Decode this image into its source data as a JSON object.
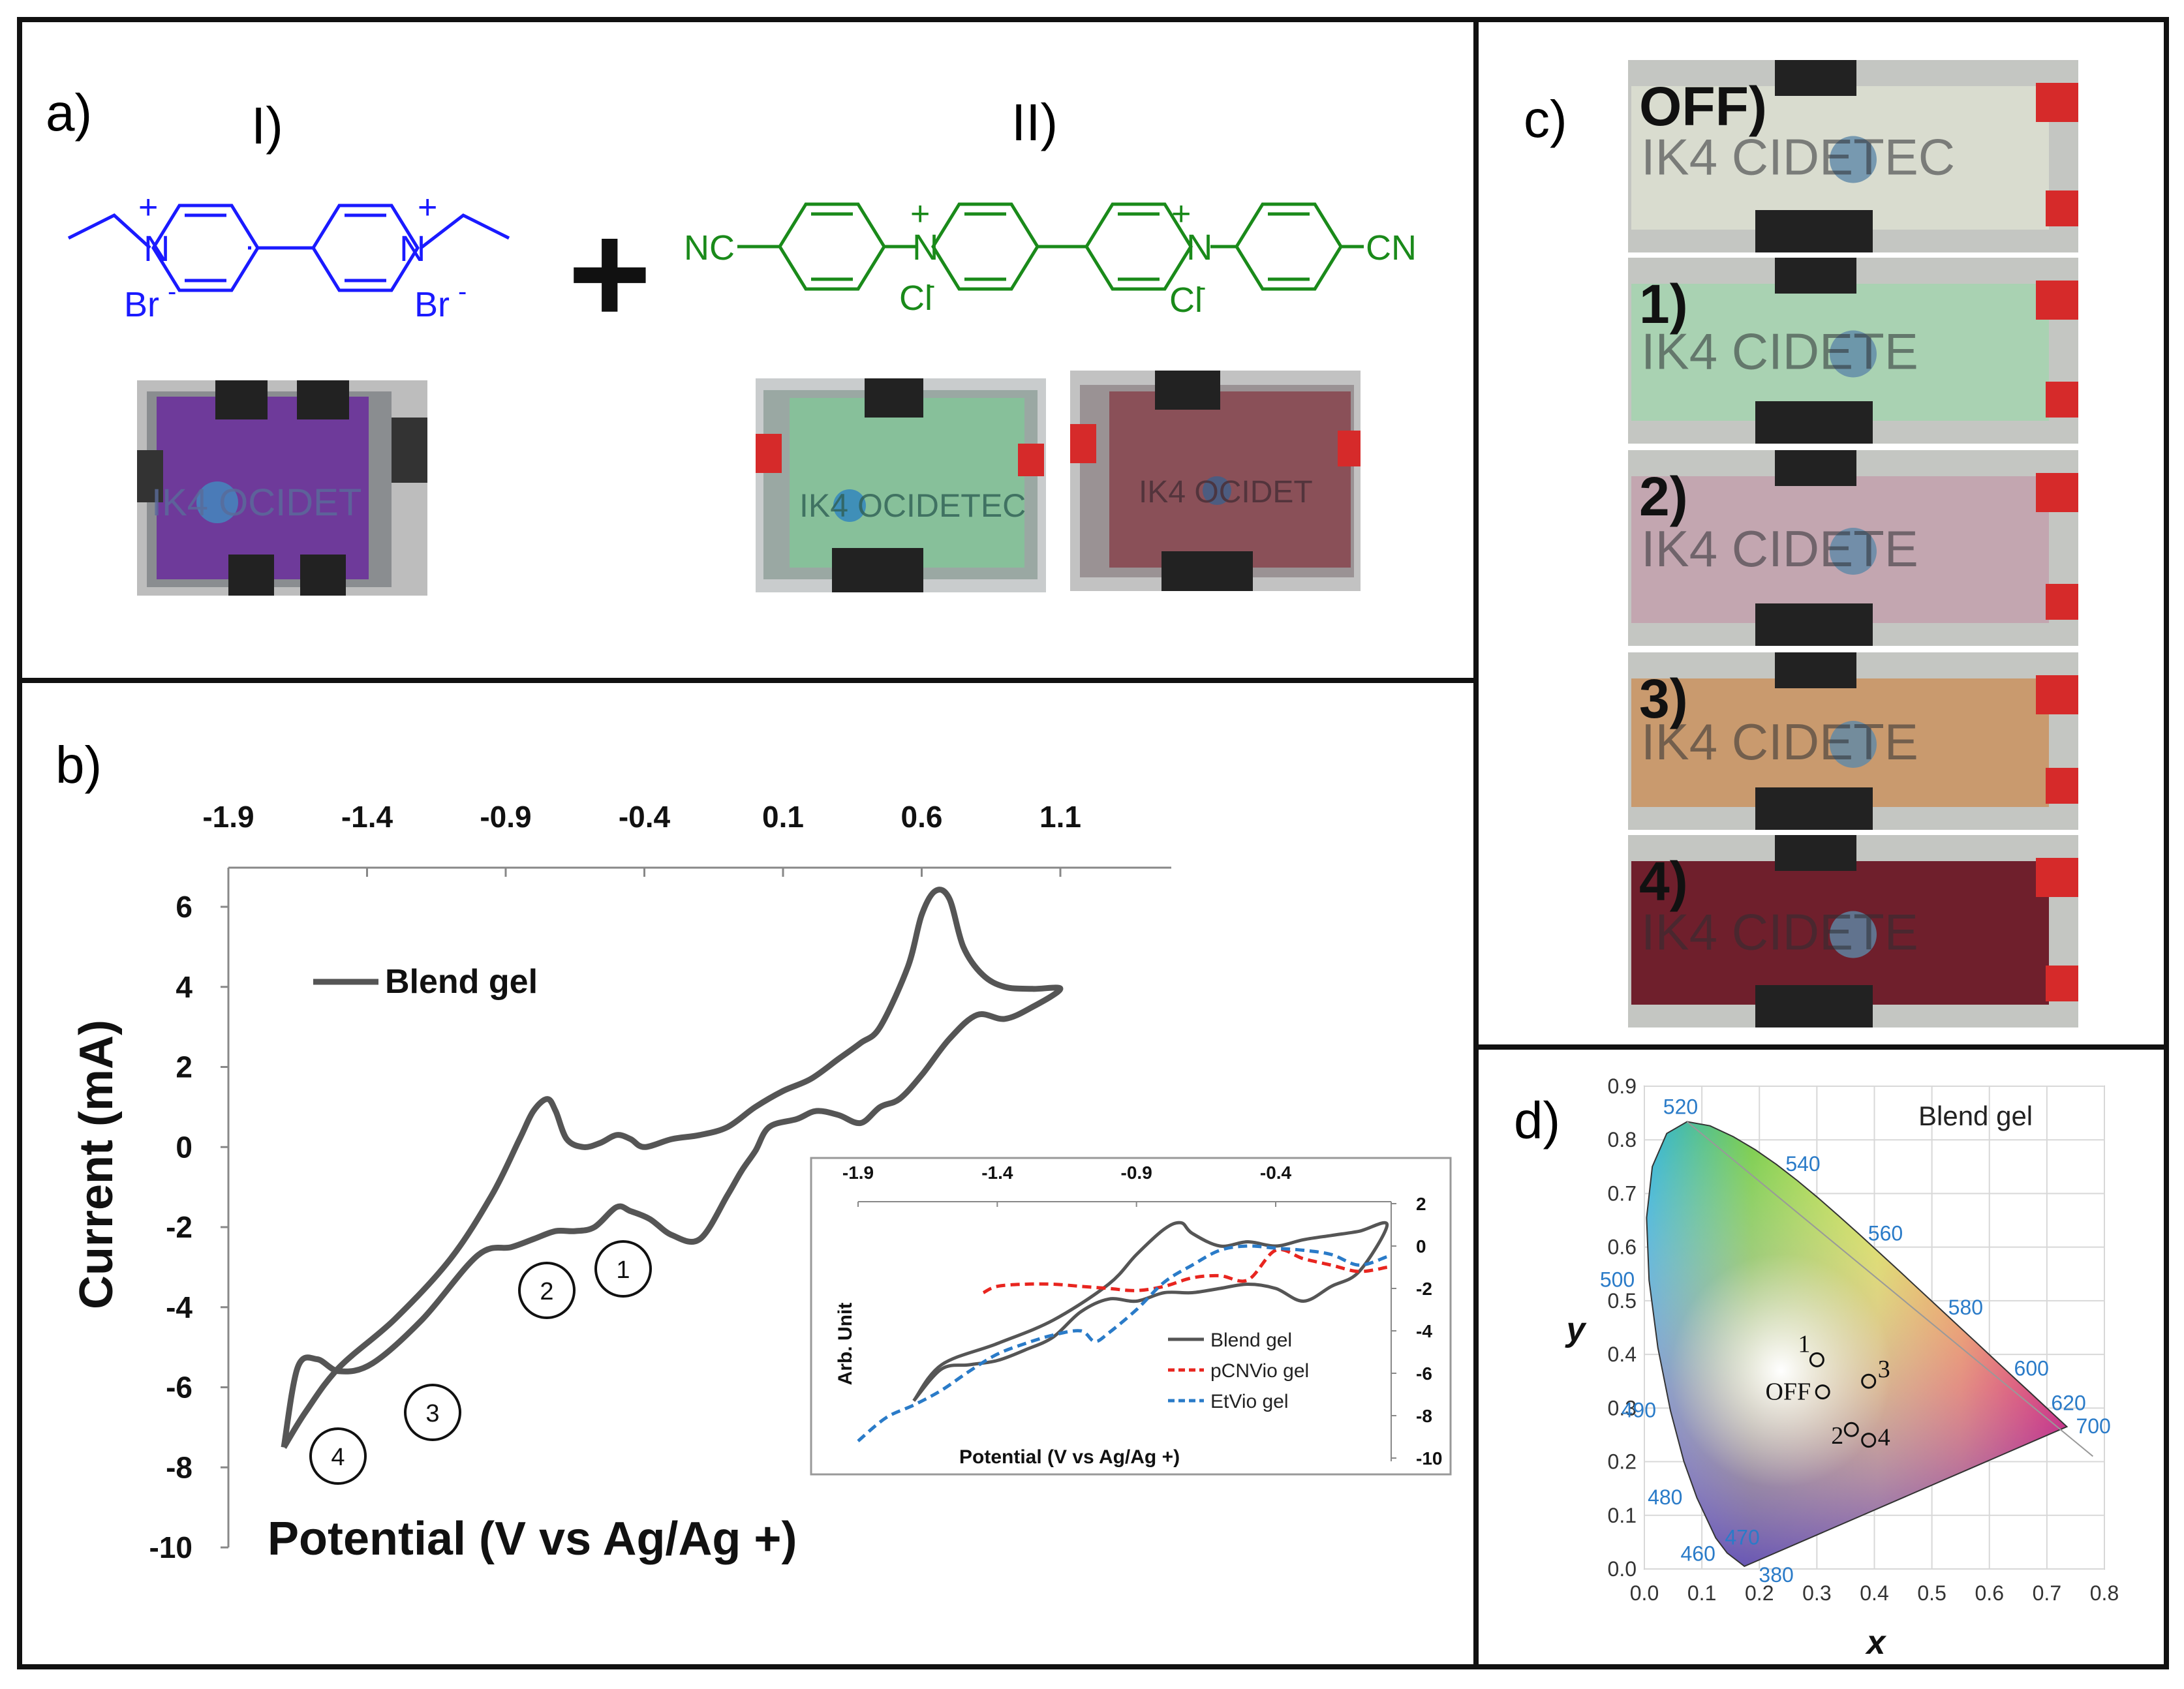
{
  "panel_a": {
    "label": "a)",
    "label_I": "I)",
    "label_II": "II)",
    "compound_I": {
      "plus1": "+",
      "plus2": "+",
      "n1": "N",
      "n2": "N",
      "counter1": "Br",
      "counter2": "Br",
      "color": "#1a1aff"
    },
    "compound_II": {
      "plus1": "+",
      "plus2": "+",
      "n1": "N",
      "n2": "N",
      "cn_left": "NC",
      "cn_right": "CN",
      "counter1": "Cl",
      "counter2": "Cl",
      "color": "#1a8a1a"
    },
    "plus_sign": "+",
    "photo_logo_I": "IK4 OCIDET",
    "photo_logo_II_green": "IK4 OCIDETEC",
    "photo_logo_II_red": "IK4 OCIDET"
  },
  "panel_b": {
    "label": "b)",
    "markers": [
      "1",
      "2",
      "3",
      "4"
    ]
  },
  "panel_c": {
    "label": "c)",
    "states": [
      {
        "label": "OFF)",
        "tint": "#d9dccf",
        "logo": "IK4 CIDETEC"
      },
      {
        "label": "1)",
        "tint": "#a9d2b2",
        "logo": "IK4 CIDETE"
      },
      {
        "label": "2)",
        "tint": "#c3a6b0",
        "logo": "IK4 CIDETE"
      },
      {
        "label": "3)",
        "tint": "#c99a6e",
        "logo": "IK4 CIDETE"
      },
      {
        "label": "4)",
        "tint": "#6f1f2c",
        "logo": "IK4 CIDETE"
      }
    ]
  },
  "panel_d": {
    "label": "d)",
    "title": "Blend gel",
    "xlabel": "x",
    "ylabel": "y",
    "x_ticks": [
      "0.0",
      "0.1",
      "0.2",
      "0.3",
      "0.4",
      "0.5",
      "0.6",
      "0.7",
      "0.8"
    ],
    "y_ticks": [
      "0.0",
      "0.1",
      "0.2",
      "0.3",
      "0.4",
      "0.5",
      "0.6",
      "0.7",
      "0.8",
      "0.9"
    ],
    "wavelengths": [
      {
        "label": "380",
        "x": 0.1741,
        "y": 0.005
      },
      {
        "label": "460",
        "x": 0.144,
        "y": 0.0297
      },
      {
        "label": "470",
        "x": 0.1241,
        "y": 0.0578
      },
      {
        "label": "480",
        "x": 0.0913,
        "y": 0.1327
      },
      {
        "label": "490",
        "x": 0.0454,
        "y": 0.295
      },
      {
        "label": "500",
        "x": 0.0082,
        "y": 0.5384
      },
      {
        "label": "520",
        "x": 0.0743,
        "y": 0.8338
      },
      {
        "label": "540",
        "x": 0.2296,
        "y": 0.7543
      },
      {
        "label": "560",
        "x": 0.3731,
        "y": 0.6245
      },
      {
        "label": "580",
        "x": 0.5125,
        "y": 0.4866
      },
      {
        "label": "600",
        "x": 0.627,
        "y": 0.3725
      },
      {
        "label": "620",
        "x": 0.6915,
        "y": 0.3083
      },
      {
        "label": "700",
        "x": 0.7347,
        "y": 0.2653
      }
    ],
    "points": [
      {
        "label": "OFF",
        "x": 0.31,
        "y": 0.33
      },
      {
        "label": "1",
        "x": 0.3,
        "y": 0.39
      },
      {
        "label": "2",
        "x": 0.36,
        "y": 0.26
      },
      {
        "label": "3",
        "x": 0.39,
        "y": 0.35
      },
      {
        "label": "4",
        "x": 0.39,
        "y": 0.24
      }
    ]
  },
  "chart_data": [
    {
      "type": "line",
      "title": "",
      "xlabel": "Potential (V vs Ag/Ag +)",
      "ylabel": "Current (mA)",
      "x_ticks": [
        "-1.9",
        "-1.4",
        "-0.9",
        "-0.4",
        "0.1",
        "0.6",
        "1.1"
      ],
      "y_ticks": [
        "6",
        "4",
        "2",
        "0",
        "-2",
        "-4",
        "-6",
        "-8",
        "-10"
      ],
      "xlim": [
        -1.9,
        1.5
      ],
      "ylim": [
        -10,
        7
      ],
      "legend_position": "top-left",
      "series": [
        {
          "name": "Blend gel",
          "color": "#555555",
          "x": [
            -1.7,
            -1.62,
            -1.5,
            -1.3,
            -1.1,
            -0.95,
            -0.85,
            -0.8,
            -0.75,
            -0.72,
            -0.68,
            -0.62,
            -0.56,
            -0.5,
            -0.45,
            -0.4,
            -0.3,
            -0.2,
            -0.1,
            0.0,
            0.1,
            0.2,
            0.3,
            0.38,
            0.45,
            0.55,
            0.6,
            0.65,
            0.7,
            0.75,
            0.82,
            0.9,
            1.0,
            1.1,
            1.0,
            0.9,
            0.8,
            0.7,
            0.6,
            0.52,
            0.45,
            0.38,
            0.3,
            0.22,
            0.15,
            0.05,
            0.0,
            -0.05,
            -0.1,
            -0.2,
            -0.3,
            -0.38,
            -0.45,
            -0.5,
            -0.58,
            -0.65,
            -0.72,
            -0.8,
            -0.88,
            -1.0,
            -1.2,
            -1.38,
            -1.5,
            -1.58,
            -1.65,
            -1.7
          ],
          "y": [
            -7.5,
            -6.6,
            -5.5,
            -4.3,
            -2.8,
            -1.2,
            0.2,
            0.9,
            1.2,
            0.9,
            0.2,
            0.0,
            0.1,
            0.3,
            0.2,
            0.0,
            0.2,
            0.3,
            0.5,
            1.0,
            1.4,
            1.7,
            2.2,
            2.6,
            3.0,
            4.5,
            5.8,
            6.4,
            6.2,
            5.0,
            4.3,
            4.0,
            3.95,
            3.95,
            3.5,
            3.2,
            3.3,
            2.7,
            1.8,
            1.2,
            1.0,
            0.6,
            0.8,
            0.9,
            0.7,
            0.5,
            -0.1,
            -0.6,
            -1.2,
            -2.3,
            -2.2,
            -1.8,
            -1.6,
            -1.5,
            -2.0,
            -2.1,
            -2.1,
            -2.3,
            -2.5,
            -2.7,
            -4.3,
            -5.4,
            -5.6,
            -5.3,
            -5.5,
            -7.5
          ]
        }
      ]
    },
    {
      "type": "line",
      "title": "",
      "xlabel": "Potential (V vs Ag/Ag +)",
      "ylabel": "Arb. Unit",
      "x_ticks": [
        "-1.9",
        "-1.4",
        "-0.9",
        "-0.4"
      ],
      "y_ticks": [
        "2",
        "0",
        "-2",
        "-4",
        "-6",
        "-8",
        "-10"
      ],
      "xlim": [
        -1.9,
        -0.0
      ],
      "ylim": [
        -10,
        2
      ],
      "legend_position": "bottom-right",
      "series": [
        {
          "name": "Blend gel",
          "color": "#555555",
          "x": [
            -1.7,
            -1.6,
            -1.4,
            -1.2,
            -1.0,
            -0.9,
            -0.8,
            -0.74,
            -0.7,
            -0.6,
            -0.5,
            -0.4,
            -0.3,
            -0.2,
            -0.1,
            0.0,
            -0.1,
            -0.2,
            -0.3,
            -0.4,
            -0.5,
            -0.6,
            -0.7,
            -0.8,
            -0.9,
            -1.0,
            -1.1,
            -1.2,
            -1.3,
            -1.4,
            -1.5,
            -1.6,
            -1.7
          ],
          "y": [
            -7.3,
            -5.6,
            -4.6,
            -3.5,
            -1.8,
            -0.4,
            0.8,
            1.1,
            0.6,
            0.0,
            0.2,
            0.0,
            0.3,
            0.5,
            0.7,
            1.0,
            -1.2,
            -1.9,
            -2.6,
            -2.0,
            -1.8,
            -2.0,
            -2.2,
            -2.2,
            -2.6,
            -2.5,
            -3.1,
            -4.3,
            -4.9,
            -5.4,
            -5.6,
            -5.8,
            -7.3
          ]
        },
        {
          "name": "pCNVio gel",
          "color": "#e8251f",
          "x": [
            -1.45,
            -1.4,
            -1.3,
            -1.2,
            -1.1,
            -1.0,
            -0.9,
            -0.8,
            -0.7,
            -0.6,
            -0.5,
            -0.4,
            -0.3,
            -0.2,
            -0.1,
            0.0
          ],
          "y": [
            -2.2,
            -1.9,
            -1.8,
            -1.8,
            -1.9,
            -2.0,
            -2.1,
            -1.9,
            -1.5,
            -1.4,
            -1.6,
            -0.2,
            -0.6,
            -0.9,
            -1.2,
            -1.0
          ]
        },
        {
          "name": "EtVio gel",
          "color": "#2a7bc8",
          "x": [
            -1.9,
            -1.8,
            -1.7,
            -1.6,
            -1.5,
            -1.4,
            -1.3,
            -1.2,
            -1.1,
            -1.05,
            -1.0,
            -0.9,
            -0.8,
            -0.7,
            -0.6,
            -0.5,
            -0.4,
            -0.3,
            -0.2,
            -0.1,
            0.0
          ],
          "y": [
            -9.2,
            -8.1,
            -7.5,
            -6.8,
            -5.9,
            -5.1,
            -4.6,
            -4.2,
            -4.0,
            -4.5,
            -4.1,
            -3.0,
            -1.7,
            -0.9,
            -0.2,
            0.0,
            -0.1,
            -0.2,
            -0.4,
            -0.9,
            -0.5
          ]
        }
      ]
    }
  ]
}
